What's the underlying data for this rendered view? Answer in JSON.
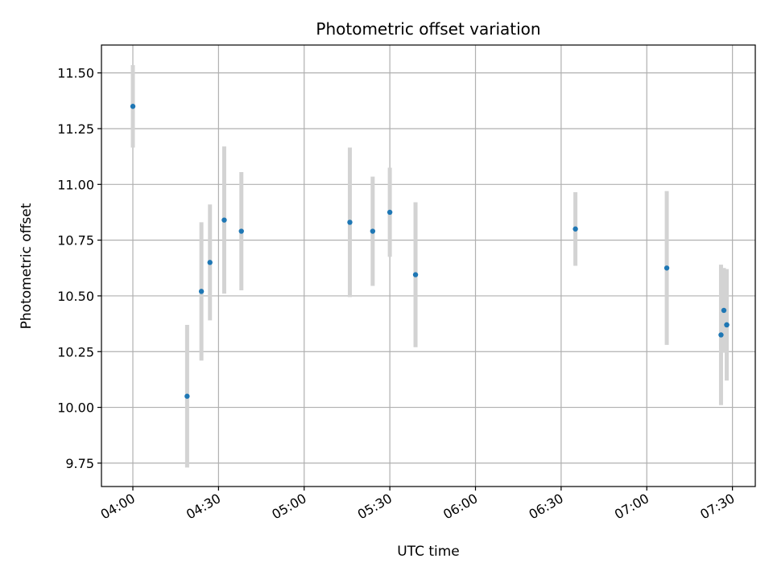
{
  "chart_data": {
    "type": "scatter",
    "title": "Photometric offset variation",
    "xlabel": "UTC time",
    "ylabel": "Photometric offset",
    "x_axis_kind": "time (HH:MM)",
    "xlim": [
      "03:49",
      "07:38"
    ],
    "ylim": [
      9.645,
      11.625
    ],
    "x_ticks": [
      "04:00",
      "04:30",
      "05:00",
      "05:30",
      "06:00",
      "06:30",
      "07:00",
      "07:30"
    ],
    "y_ticks": [
      "9.75",
      "10.00",
      "10.25",
      "10.50",
      "10.75",
      "11.00",
      "11.25",
      "11.50"
    ],
    "grid": true,
    "legend": "none",
    "marker_color": "#1f77b4",
    "errorbar_color": "#d3d3d3",
    "points": [
      {
        "x": "04:00",
        "y": 11.35,
        "err": 0.185
      },
      {
        "x": "04:19",
        "y": 10.05,
        "err": 0.32
      },
      {
        "x": "04:24",
        "y": 10.52,
        "err": 0.31
      },
      {
        "x": "04:27",
        "y": 10.65,
        "err": 0.26
      },
      {
        "x": "04:32",
        "y": 10.84,
        "err": 0.33
      },
      {
        "x": "04:38",
        "y": 10.79,
        "err": 0.265
      },
      {
        "x": "05:16",
        "y": 10.83,
        "err": 0.335
      },
      {
        "x": "05:24",
        "y": 10.79,
        "err": 0.245
      },
      {
        "x": "05:30",
        "y": 10.875,
        "err": 0.2
      },
      {
        "x": "05:39",
        "y": 10.595,
        "err": 0.325
      },
      {
        "x": "06:35",
        "y": 10.8,
        "err": 0.165
      },
      {
        "x": "07:07",
        "y": 10.625,
        "err": 0.345
      },
      {
        "x": "07:26",
        "y": 10.325,
        "err": 0.315
      },
      {
        "x": "07:27",
        "y": 10.435,
        "err": 0.19
      },
      {
        "x": "07:28",
        "y": 10.37,
        "err": 0.25
      },
      {
        "x": "07:28",
        "y": 10.37,
        "err": 0.235
      }
    ]
  }
}
